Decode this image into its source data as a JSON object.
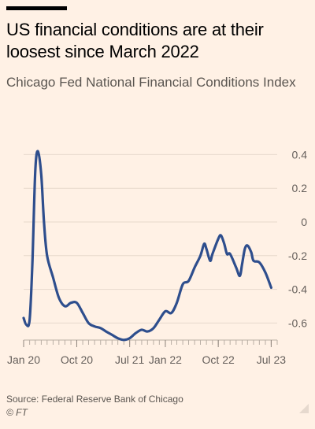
{
  "chart_data": {
    "type": "line",
    "title": "US financial conditions are at their loosest since March 2022",
    "subtitle": "Chicago Fed National Financial Conditions Index",
    "source": "Source: Federal Reserve Bank of Chicago",
    "copyright": "© FT",
    "ylim": [
      -0.7,
      0.45
    ],
    "y_ticks": [
      {
        "value": 0.4,
        "label": "0.4"
      },
      {
        "value": 0.2,
        "label": "0.2"
      },
      {
        "value": 0,
        "label": "0"
      },
      {
        "value": -0.2,
        "label": "-0.2"
      },
      {
        "value": -0.4,
        "label": "-0.4"
      },
      {
        "value": -0.6,
        "label": "-0.6"
      }
    ],
    "x_ticks": [
      {
        "date": "2020-01",
        "label": "Jan 20"
      },
      {
        "date": "2020-10",
        "label": "Oct 20"
      },
      {
        "date": "2021-07",
        "label": "Jul 21"
      },
      {
        "date": "2022-01",
        "label": "Jan 22"
      },
      {
        "date": "2022-10",
        "label": "Oct 22"
      },
      {
        "date": "2023-07",
        "label": "Jul 23"
      }
    ],
    "x_range": [
      "2020-01",
      "2023-08"
    ],
    "grid": true,
    "line_color": "#2e4e8d",
    "series": [
      {
        "name": "",
        "points": [
          {
            "x": "2020-01",
            "y": -0.57
          },
          {
            "x": "2020-01-15",
            "y": -0.61
          },
          {
            "x": "2020-02",
            "y": -0.58
          },
          {
            "x": "2020-02-15",
            "y": -0.25
          },
          {
            "x": "2020-03",
            "y": 0.3
          },
          {
            "x": "2020-03-15",
            "y": 0.42
          },
          {
            "x": "2020-04",
            "y": 0.28
          },
          {
            "x": "2020-04-15",
            "y": 0.0
          },
          {
            "x": "2020-05",
            "y": -0.2
          },
          {
            "x": "2020-06",
            "y": -0.33
          },
          {
            "x": "2020-07",
            "y": -0.45
          },
          {
            "x": "2020-08",
            "y": -0.5
          },
          {
            "x": "2020-09",
            "y": -0.48
          },
          {
            "x": "2020-10",
            "y": -0.48
          },
          {
            "x": "2020-11",
            "y": -0.54
          },
          {
            "x": "2020-12",
            "y": -0.6
          },
          {
            "x": "2021-01",
            "y": -0.62
          },
          {
            "x": "2021-02",
            "y": -0.63
          },
          {
            "x": "2021-03",
            "y": -0.65
          },
          {
            "x": "2021-04",
            "y": -0.67
          },
          {
            "x": "2021-05",
            "y": -0.69
          },
          {
            "x": "2021-06",
            "y": -0.7
          },
          {
            "x": "2021-07",
            "y": -0.69
          },
          {
            "x": "2021-08",
            "y": -0.66
          },
          {
            "x": "2021-09",
            "y": -0.64
          },
          {
            "x": "2021-10",
            "y": -0.65
          },
          {
            "x": "2021-11",
            "y": -0.63
          },
          {
            "x": "2021-12",
            "y": -0.58
          },
          {
            "x": "2022-01",
            "y": -0.53
          },
          {
            "x": "2022-02",
            "y": -0.54
          },
          {
            "x": "2022-03",
            "y": -0.48
          },
          {
            "x": "2022-04",
            "y": -0.37
          },
          {
            "x": "2022-05",
            "y": -0.35
          },
          {
            "x": "2022-06",
            "y": -0.27
          },
          {
            "x": "2022-07",
            "y": -0.2
          },
          {
            "x": "2022-07-20",
            "y": -0.13
          },
          {
            "x": "2022-08",
            "y": -0.16
          },
          {
            "x": "2022-08-20",
            "y": -0.23
          },
          {
            "x": "2022-09",
            "y": -0.19
          },
          {
            "x": "2022-10",
            "y": -0.1
          },
          {
            "x": "2022-10-15",
            "y": -0.08
          },
          {
            "x": "2022-11",
            "y": -0.13
          },
          {
            "x": "2022-11-15",
            "y": -0.19
          },
          {
            "x": "2022-12",
            "y": -0.19
          },
          {
            "x": "2023-01",
            "y": -0.27
          },
          {
            "x": "2023-01-20",
            "y": -0.32
          },
          {
            "x": "2023-02",
            "y": -0.25
          },
          {
            "x": "2023-02-15",
            "y": -0.16
          },
          {
            "x": "2023-03",
            "y": -0.14
          },
          {
            "x": "2023-03-20",
            "y": -0.18
          },
          {
            "x": "2023-04",
            "y": -0.23
          },
          {
            "x": "2023-05",
            "y": -0.24
          },
          {
            "x": "2023-06",
            "y": -0.3
          },
          {
            "x": "2023-07",
            "y": -0.39
          }
        ]
      }
    ]
  }
}
